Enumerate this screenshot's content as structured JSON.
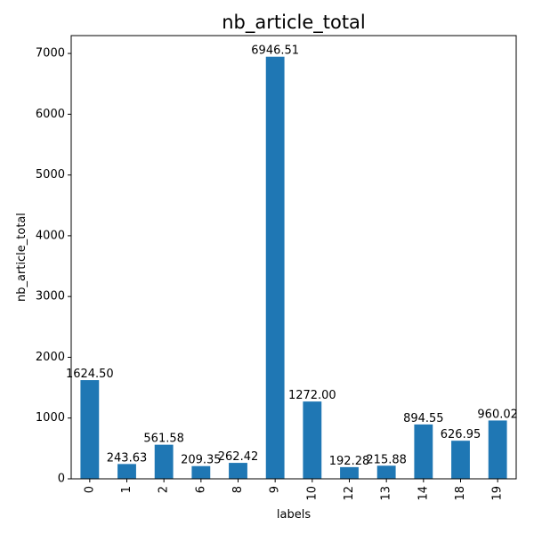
{
  "chart_data": {
    "type": "bar",
    "title": "nb_article_total",
    "xlabel": "labels",
    "ylabel": "nb_article_total",
    "categories": [
      "0",
      "1",
      "2",
      "6",
      "8",
      "9",
      "10",
      "12",
      "13",
      "14",
      "18",
      "19"
    ],
    "values": [
      1624.5,
      243.63,
      561.58,
      209.35,
      262.42,
      6946.51,
      1272.0,
      192.28,
      215.88,
      894.55,
      626.95,
      960.02
    ],
    "value_labels": [
      "1624.50",
      "243.63",
      "561.58",
      "209.35",
      "262.42",
      "6946.51",
      "1272.00",
      "192.28",
      "215.88",
      "894.55",
      "626.95",
      "960.02"
    ],
    "y_ticks": [
      0,
      1000,
      2000,
      3000,
      4000,
      5000,
      6000,
      7000
    ],
    "ylim": [
      0,
      7293.84
    ],
    "bar_color": "#1f77b4",
    "grid": false,
    "legend": false
  }
}
